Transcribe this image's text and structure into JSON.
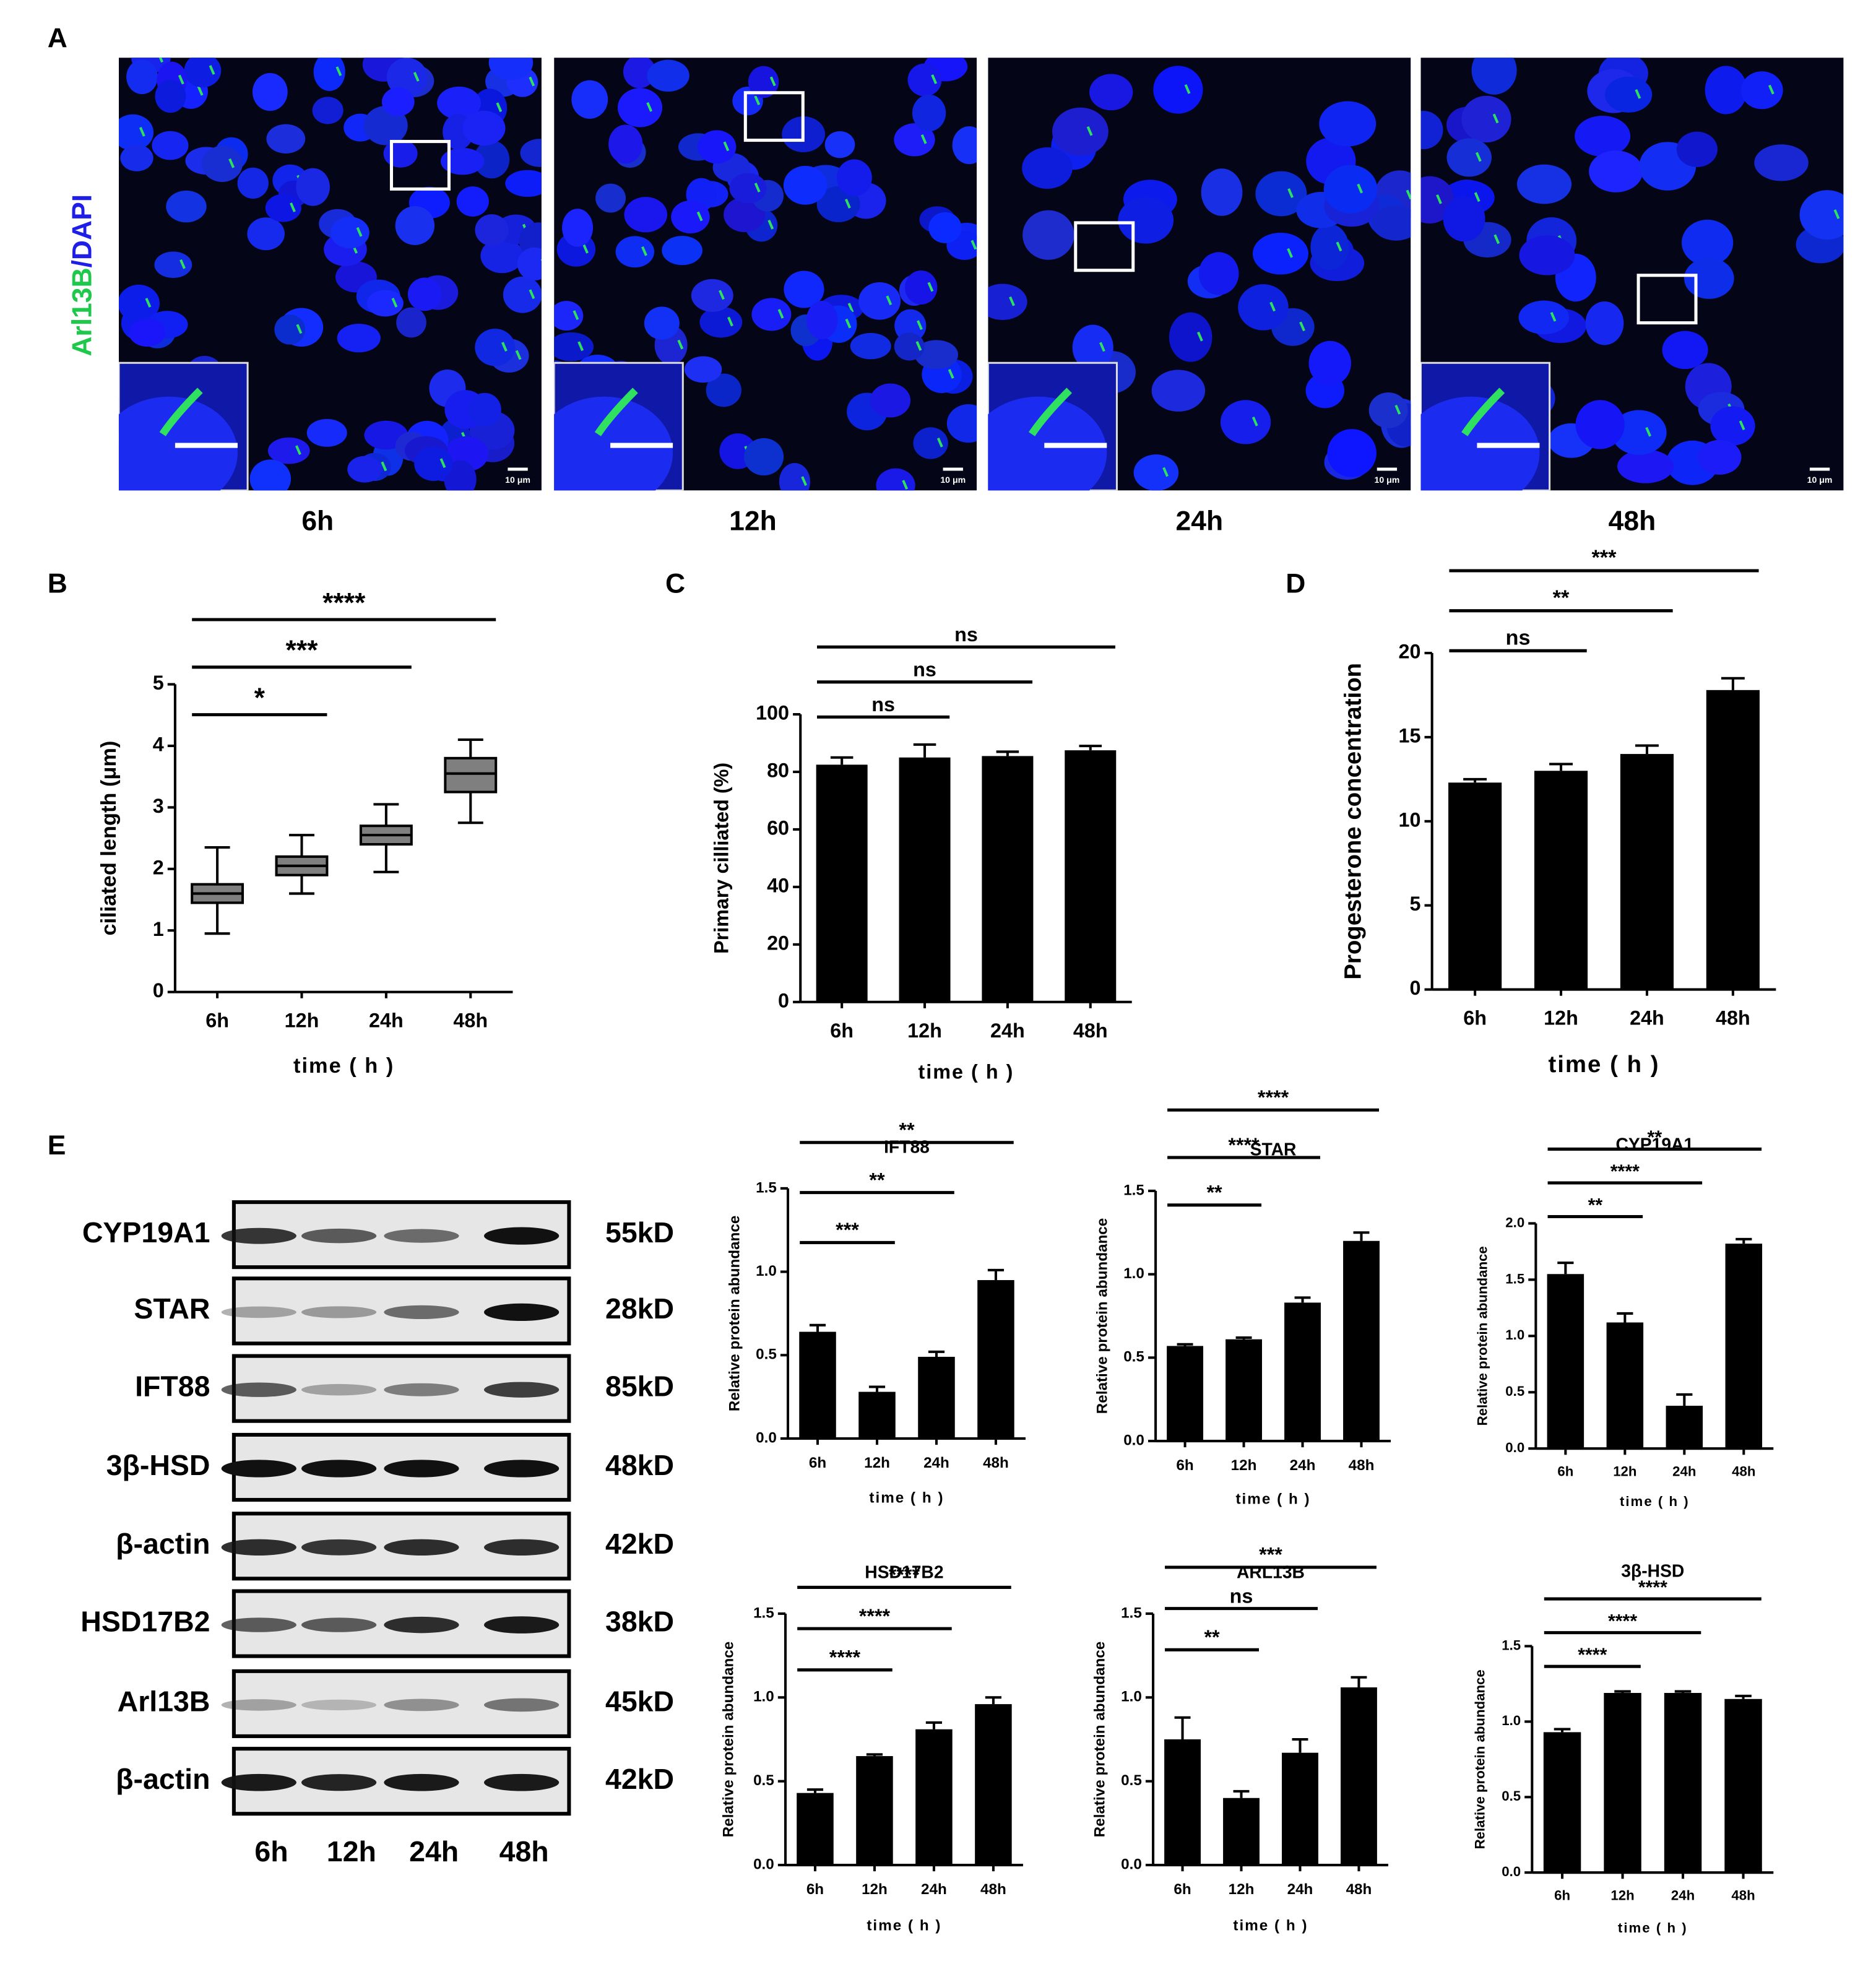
{
  "panel_labels": [
    "A",
    "B",
    "C",
    "D",
    "E"
  ],
  "microscopy": {
    "stain_green": "Arl13B",
    "stain_separator": "/",
    "stain_blue": "DAPI",
    "scale_bar": "10 μm",
    "timepoints": [
      "6h",
      "12h",
      "24h",
      "48h"
    ]
  },
  "western_blot": {
    "proteins": [
      "CYP19A1",
      "STAR",
      "IFT88",
      "3β-HSD",
      "β-actin",
      "HSD17B2",
      "Arl13B",
      "β-actin"
    ],
    "sizes": [
      "55kD",
      "28kD",
      "85kD",
      "48kD",
      "42kD",
      "38kD",
      "45kD",
      "42kD"
    ],
    "lanes": [
      "6h",
      "12h",
      "24h",
      "48h"
    ]
  },
  "chart_data": [
    {
      "type": "box",
      "ylabel": "ciliated length (μm)",
      "xlabel": "time ( h )",
      "categories": [
        "6h",
        "12h",
        "24h",
        "48h"
      ],
      "color": "#7f7f7f",
      "boxes": [
        {
          "min": 0.95,
          "q1": 1.45,
          "median": 1.6,
          "q3": 1.75,
          "max": 2.35
        },
        {
          "min": 1.6,
          "q1": 1.9,
          "median": 2.05,
          "q3": 2.2,
          "max": 2.55
        },
        {
          "min": 1.95,
          "q1": 2.4,
          "median": 2.55,
          "q3": 2.7,
          "max": 3.05
        },
        {
          "min": 2.75,
          "q1": 3.25,
          "median": 3.55,
          "q3": 3.8,
          "max": 4.1
        }
      ],
      "ylim": [
        0,
        5
      ],
      "yticks": [
        0,
        1,
        2,
        3,
        4,
        5
      ],
      "significance": [
        {
          "from": "6h",
          "to": "12h",
          "label": "*"
        },
        {
          "from": "6h",
          "to": "24h",
          "label": "***"
        },
        {
          "from": "6h",
          "to": "48h",
          "label": "****"
        }
      ]
    },
    {
      "type": "bar",
      "ylabel": "Primary cilliated (%)",
      "xlabel": "time ( h )",
      "categories": [
        "6h",
        "12h",
        "24h",
        "48h"
      ],
      "color": "#000000",
      "values": [
        82.5,
        85,
        85.5,
        87.5
      ],
      "errors": [
        2.5,
        4.5,
        1.5,
        1.5
      ],
      "ylim": [
        0,
        100
      ],
      "yticks": [
        0,
        20,
        40,
        60,
        80,
        100
      ],
      "significance": [
        {
          "from": "6h",
          "to": "12h",
          "label": "ns"
        },
        {
          "from": "6h",
          "to": "24h",
          "label": "ns"
        },
        {
          "from": "6h",
          "to": "48h",
          "label": "ns"
        }
      ]
    },
    {
      "type": "bar",
      "ylabel": "Progesterone concentration",
      "xlabel": "time ( h )",
      "categories": [
        "6h",
        "12h",
        "24h",
        "48h"
      ],
      "color": "#000000",
      "values": [
        12.3,
        13,
        14,
        17.8
      ],
      "errors": [
        0.2,
        0.4,
        0.5,
        0.7
      ],
      "ylim": [
        0,
        20
      ],
      "yticks": [
        0,
        5,
        10,
        15,
        20
      ],
      "significance": [
        {
          "from": "6h",
          "to": "12h",
          "label": "ns"
        },
        {
          "from": "6h",
          "to": "24h",
          "label": "**"
        },
        {
          "from": "6h",
          "to": "48h",
          "label": "***"
        }
      ]
    },
    {
      "type": "bar",
      "title": "IFT88",
      "ylabel": "Relative protein abundance",
      "xlabel": "time ( h )",
      "categories": [
        "6h",
        "12h",
        "24h",
        "48h"
      ],
      "color": "#000000",
      "values": [
        0.64,
        0.28,
        0.49,
        0.95
      ],
      "errors": [
        0.04,
        0.03,
        0.03,
        0.06
      ],
      "ylim": [
        0,
        1.5
      ],
      "yticks": [
        {
          "value": 0,
          "label": "0.0"
        },
        0.5,
        {
          "value": 1,
          "label": "1.0"
        },
        1.5
      ],
      "significance": [
        {
          "from": "6h",
          "to": "12h",
          "label": "***"
        },
        {
          "from": "6h",
          "to": "24h",
          "label": "**"
        },
        {
          "from": "6h",
          "to": "48h",
          "label": "**"
        }
      ]
    },
    {
      "type": "bar",
      "title": "STAR",
      "ylabel": "Relative protein abundance",
      "xlabel": "time ( h )",
      "categories": [
        "6h",
        "12h",
        "24h",
        "48h"
      ],
      "color": "#000000",
      "values": [
        0.57,
        0.61,
        0.83,
        1.2
      ],
      "errors": [
        0.01,
        0.01,
        0.03,
        0.05
      ],
      "ylim": [
        0,
        1.5
      ],
      "yticks": [
        {
          "value": 0,
          "label": "0.0"
        },
        0.5,
        {
          "value": 1,
          "label": "1.0"
        },
        1.5
      ],
      "significance": [
        {
          "from": "6h",
          "to": "12h",
          "label": "**"
        },
        {
          "from": "6h",
          "to": "24h",
          "label": "****"
        },
        {
          "from": "6h",
          "to": "48h",
          "label": "****"
        }
      ]
    },
    {
      "type": "bar",
      "title": "CYP19A1",
      "ylabel": "Relative protein abundance",
      "xlabel": "time ( h )",
      "categories": [
        "6h",
        "12h",
        "24h",
        "48h"
      ],
      "color": "#000000",
      "values": [
        1.55,
        1.12,
        0.38,
        1.82
      ],
      "errors": [
        0.1,
        0.08,
        0.1,
        0.04
      ],
      "ylim": [
        0,
        2
      ],
      "yticks": [
        {
          "value": 0,
          "label": "0.0"
        },
        0.5,
        {
          "value": 1,
          "label": "1.0"
        },
        1.5,
        {
          "value": 2,
          "label": "2.0"
        }
      ],
      "significance": [
        {
          "from": "6h",
          "to": "12h",
          "label": "**"
        },
        {
          "from": "6h",
          "to": "24h",
          "label": "****"
        },
        {
          "from": "6h",
          "to": "48h",
          "label": "**"
        }
      ]
    },
    {
      "type": "bar",
      "title": "HSD17B2",
      "ylabel": "Relative protein abundance",
      "xlabel": "time ( h )",
      "categories": [
        "6h",
        "12h",
        "24h",
        "48h"
      ],
      "color": "#000000",
      "values": [
        0.43,
        0.65,
        0.81,
        0.96
      ],
      "errors": [
        0.02,
        0.01,
        0.04,
        0.04
      ],
      "ylim": [
        0,
        1.5
      ],
      "yticks": [
        {
          "value": 0,
          "label": "0.0"
        },
        0.5,
        {
          "value": 1,
          "label": "1.0"
        },
        1.5
      ],
      "significance": [
        {
          "from": "6h",
          "to": "12h",
          "label": "****"
        },
        {
          "from": "6h",
          "to": "24h",
          "label": "****"
        },
        {
          "from": "6h",
          "to": "48h",
          "label": "****"
        }
      ]
    },
    {
      "type": "bar",
      "title": "ARL13B",
      "ylabel": "Relative protein abundance",
      "xlabel": "time ( h )",
      "categories": [
        "6h",
        "12h",
        "24h",
        "48h"
      ],
      "color": "#000000",
      "values": [
        0.75,
        0.4,
        0.67,
        1.06
      ],
      "errors": [
        0.13,
        0.04,
        0.08,
        0.06
      ],
      "ylim": [
        0,
        1.5
      ],
      "yticks": [
        {
          "value": 0,
          "label": "0.0"
        },
        0.5,
        {
          "value": 1,
          "label": "1.0"
        },
        1.5
      ],
      "significance": [
        {
          "from": "6h",
          "to": "12h",
          "label": "**"
        },
        {
          "from": "6h",
          "to": "24h",
          "label": "ns"
        },
        {
          "from": "6h",
          "to": "48h",
          "label": "***"
        }
      ]
    },
    {
      "type": "bar",
      "title": "3β-HSD",
      "ylabel": "Relative protein abundance",
      "xlabel": "time ( h )",
      "categories": [
        "6h",
        "12h",
        "24h",
        "48h"
      ],
      "color": "#000000",
      "values": [
        0.93,
        1.19,
        1.19,
        1.15
      ],
      "errors": [
        0.02,
        0.01,
        0.01,
        0.02
      ],
      "ylim": [
        0,
        1.5
      ],
      "yticks": [
        {
          "value": 0,
          "label": "0.0"
        },
        0.5,
        {
          "value": 1,
          "label": "1.0"
        },
        1.5
      ],
      "significance": [
        {
          "from": "6h",
          "to": "12h",
          "label": "****"
        },
        {
          "from": "6h",
          "to": "24h",
          "label": "****"
        },
        {
          "from": "6h",
          "to": "48h",
          "label": "****"
        }
      ]
    }
  ]
}
